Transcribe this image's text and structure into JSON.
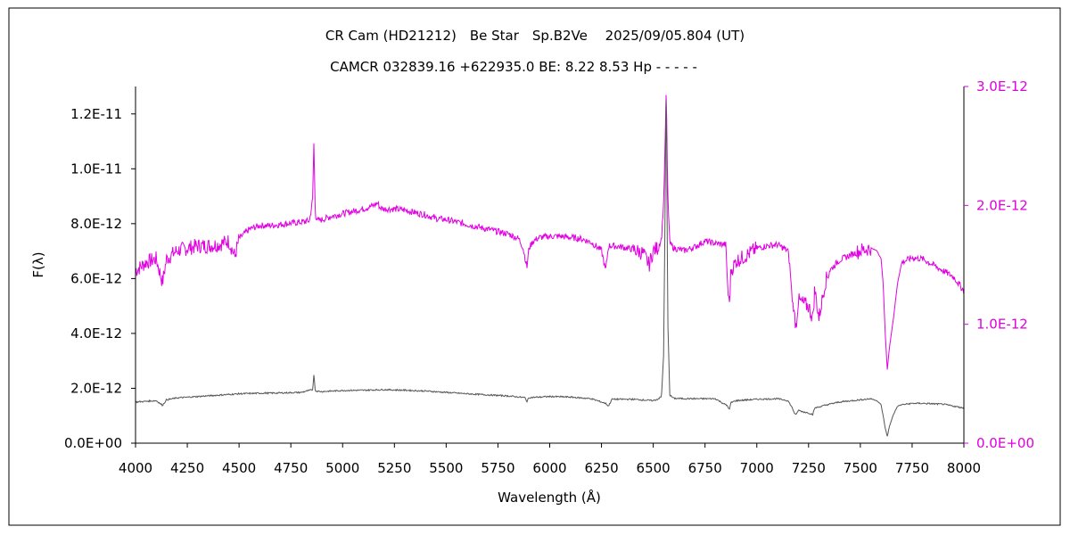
{
  "chart_data": {
    "type": "line",
    "title": "CR Cam (HD21212)　Be Star　Sp.B2Ve　 2025/09/05.804 (UT)",
    "subtitle": "CAMCR 032839.16 +622935.0 BE: 8.22 8.53 Hp - - - - -",
    "xlabel": "Wavelength (Å)",
    "ylabel": "F(λ)",
    "xlim": [
      4000,
      8000
    ],
    "ylim_left": [
      0,
      1.3e-11
    ],
    "ylim_right": [
      0,
      3e-12
    ],
    "x_ticks": [
      "4000",
      "4250",
      "4500",
      "4750",
      "5000",
      "5250",
      "5500",
      "5750",
      "6000",
      "6250",
      "6500",
      "6750",
      "7000",
      "7250",
      "7500",
      "7750",
      "8000"
    ],
    "y_left_ticks": [
      "0.0E+00",
      "2.0E-12",
      "4.0E-12",
      "6.0E-12",
      "8.0E-12",
      "1.0E-11",
      "1.2E-11"
    ],
    "y_right_ticks": [
      "0.0E+00",
      "1.0E-12",
      "2.0E-12",
      "3.0E-12"
    ],
    "grid": false,
    "colors": {
      "scaled_series": "#e000e0",
      "raw_series": "#555555",
      "axis": "#000000",
      "right_axis": "#e000e0"
    },
    "series": [
      {
        "axis": "right",
        "color": "#e000e0",
        "x": [
          4000,
          4050,
          4100,
          4130,
          4150,
          4200,
          4250,
          4300,
          4350,
          4400,
          4450,
          4480,
          4500,
          4550,
          4600,
          4650,
          4700,
          4750,
          4800,
          4840,
          4855,
          4861,
          4868,
          4880,
          4900,
          4950,
          5000,
          5050,
          5100,
          5150,
          5170,
          5180,
          5200,
          5250,
          5300,
          5350,
          5400,
          5450,
          5500,
          5550,
          5600,
          5650,
          5700,
          5750,
          5800,
          5850,
          5870,
          5890,
          5900,
          5920,
          5950,
          6000,
          6050,
          6100,
          6150,
          6200,
          6250,
          6270,
          6284,
          6300,
          6350,
          6400,
          6450,
          6480,
          6500,
          6520,
          6540,
          6550,
          6556,
          6560,
          6563,
          6566,
          6570,
          6580,
          6600,
          6650,
          6700,
          6750,
          6800,
          6850,
          6860,
          6867,
          6875,
          6900,
          6950,
          7000,
          7050,
          7100,
          7150,
          7160,
          7170,
          7180,
          7190,
          7200,
          7220,
          7250,
          7270,
          7280,
          7300,
          7330,
          7350,
          7400,
          7450,
          7500,
          7550,
          7580,
          7600,
          7610,
          7620,
          7630,
          7640,
          7660,
          7680,
          7700,
          7750,
          7800,
          7850,
          7900,
          7950,
          8000
        ],
        "y": [
          1.45e-12,
          1.52e-12,
          1.55e-12,
          1.35e-12,
          1.55e-12,
          1.62e-12,
          1.64e-12,
          1.66e-12,
          1.66e-12,
          1.67e-12,
          1.7e-12,
          1.57e-12,
          1.72e-12,
          1.8e-12,
          1.83e-12,
          1.83e-12,
          1.84e-12,
          1.85e-12,
          1.86e-12,
          1.87e-12,
          2.05e-12,
          2.52e-12,
          1.92e-12,
          1.87e-12,
          1.88e-12,
          1.91e-12,
          1.93e-12,
          1.95e-12,
          1.97e-12,
          2e-12,
          2.02e-12,
          1.98e-12,
          1.97e-12,
          1.97e-12,
          1.96e-12,
          1.94e-12,
          1.92e-12,
          1.89e-12,
          1.88e-12,
          1.86e-12,
          1.84e-12,
          1.82e-12,
          1.8e-12,
          1.78e-12,
          1.76e-12,
          1.72e-12,
          1.65e-12,
          1.48e-12,
          1.64e-12,
          1.7e-12,
          1.73e-12,
          1.74e-12,
          1.74e-12,
          1.73e-12,
          1.72e-12,
          1.69e-12,
          1.62e-12,
          1.45e-12,
          1.66e-12,
          1.66e-12,
          1.65e-12,
          1.63e-12,
          1.6e-12,
          1.5e-12,
          1.62e-12,
          1.64e-12,
          1.72e-12,
          2.02e-12,
          2.4e-12,
          2.75e-12,
          3e-12,
          2.55e-12,
          2.1e-12,
          1.68e-12,
          1.64e-12,
          1.62e-12,
          1.65e-12,
          1.7e-12,
          1.68e-12,
          1.67e-12,
          1.3e-12,
          1.15e-12,
          1.45e-12,
          1.53e-12,
          1.58e-12,
          1.64e-12,
          1.66e-12,
          1.67e-12,
          1.62e-12,
          1.48e-12,
          1.22e-12,
          1.1e-12,
          9.8e-13,
          1.2e-12,
          1.18e-12,
          1.15e-12,
          1.05e-12,
          1.3e-12,
          1.05e-12,
          1.35e-12,
          1.45e-12,
          1.54e-12,
          1.58e-12,
          1.62e-12,
          1.64e-12,
          1.62e-12,
          1.55e-12,
          1.35e-12,
          9.2e-13,
          6.2e-13,
          8e-13,
          1.05e-12,
          1.35e-12,
          1.52e-12,
          1.56e-12,
          1.55e-12,
          1.5e-12,
          1.45e-12,
          1.4e-12,
          1.28e-12
        ]
      },
      {
        "axis": "left",
        "color": "#555555",
        "x": [
          4000,
          4100,
          4130,
          4150,
          4200,
          4300,
          4400,
          4500,
          4600,
          4700,
          4800,
          4855,
          4861,
          4868,
          4900,
          5000,
          5100,
          5200,
          5300,
          5400,
          5500,
          5600,
          5700,
          5800,
          5880,
          5890,
          5900,
          6000,
          6100,
          6200,
          6270,
          6284,
          6300,
          6400,
          6500,
          6520,
          6540,
          6550,
          6556,
          6560,
          6563,
          6566,
          6570,
          6580,
          6600,
          6700,
          6800,
          6860,
          6867,
          6875,
          6900,
          7000,
          7100,
          7150,
          7170,
          7180,
          7190,
          7200,
          7220,
          7250,
          7270,
          7280,
          7300,
          7350,
          7400,
          7500,
          7550,
          7580,
          7600,
          7610,
          7620,
          7630,
          7640,
          7660,
          7680,
          7700,
          7750,
          7800,
          7900,
          8000
        ],
        "y": [
          1.5e-12,
          1.55e-12,
          1.38e-12,
          1.58e-12,
          1.65e-12,
          1.7e-12,
          1.75e-12,
          1.8e-12,
          1.82e-12,
          1.83e-12,
          1.85e-12,
          1.95e-12,
          2.5e-12,
          1.9e-12,
          1.88e-12,
          1.92e-12,
          1.93e-12,
          1.95e-12,
          1.93e-12,
          1.9e-12,
          1.85e-12,
          1.8e-12,
          1.76e-12,
          1.72e-12,
          1.66e-12,
          1.52e-12,
          1.66e-12,
          1.7e-12,
          1.68e-12,
          1.62e-12,
          1.45e-12,
          1.35e-12,
          1.6e-12,
          1.6e-12,
          1.55e-12,
          1.6e-12,
          1.7e-12,
          3.2e-12,
          7.5e-12,
          1.1e-11,
          1.32e-11,
          9.5e-12,
          4.5e-12,
          1.75e-12,
          1.63e-12,
          1.62e-12,
          1.62e-12,
          1.35e-12,
          1.2e-12,
          1.48e-12,
          1.55e-12,
          1.6e-12,
          1.62e-12,
          1.55e-12,
          1.3e-12,
          1.12e-12,
          1.02e-12,
          1.2e-12,
          1.15e-12,
          1.1e-12,
          1.05e-12,
          1.28e-12,
          1.32e-12,
          1.42e-12,
          1.5e-12,
          1.58e-12,
          1.62e-12,
          1.55e-12,
          1.4e-12,
          1e-12,
          5.5e-13,
          2.5e-13,
          6e-13,
          1.05e-12,
          1.35e-12,
          1.4e-12,
          1.45e-12,
          1.45e-12,
          1.42e-12,
          1.28e-12
        ]
      }
    ]
  }
}
